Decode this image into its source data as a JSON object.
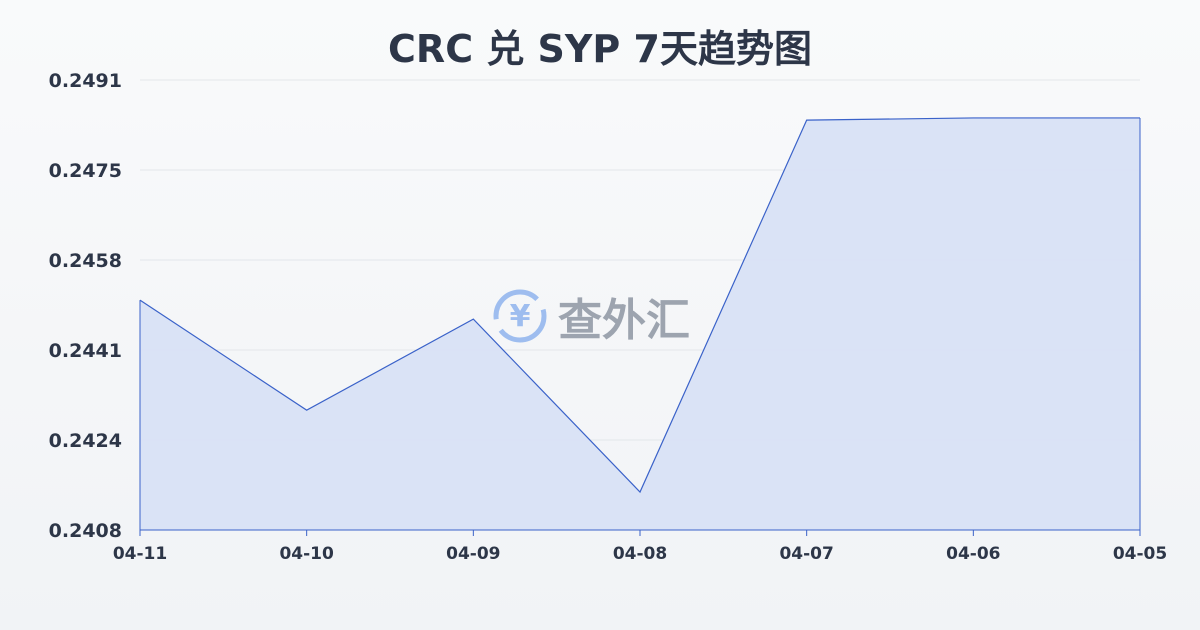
{
  "chart_data": {
    "type": "area",
    "title": "CRC 兑 SYP 7天趋势图",
    "categories": [
      "04-11",
      "04-10",
      "04-09",
      "04-08",
      "04-07",
      "04-06",
      "04-05"
    ],
    "values": [
      0.24504,
      0.24301,
      0.24469,
      0.2415,
      0.24836,
      0.2484,
      0.2484
    ],
    "yticks": [
      "0.2491",
      "0.2475",
      "0.2458",
      "0.2441",
      "0.2424",
      "0.2408"
    ],
    "ylim": [
      0.2408,
      0.2491
    ],
    "grid": true,
    "line_color": "#3a62c9",
    "fill_color": "#d8e2f5"
  },
  "watermark": {
    "text": "查外汇",
    "icon": "yen-exchange-icon"
  }
}
